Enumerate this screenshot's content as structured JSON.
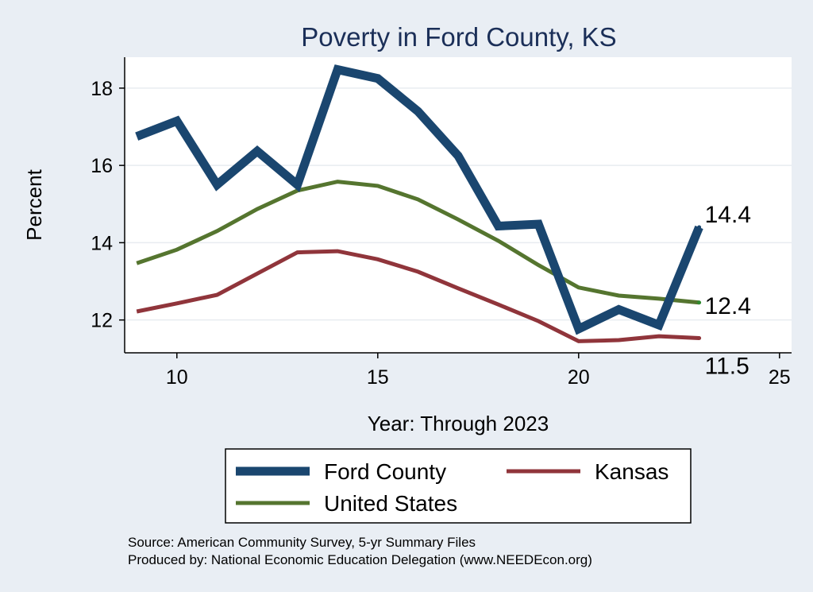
{
  "chart_data": {
    "type": "line",
    "title": "Poverty in Ford County, KS",
    "xlabel": "Year: Through 2023",
    "ylabel": "Percent",
    "xlim": [
      8.7,
      25.3
    ],
    "ylim": [
      11.15,
      18.8
    ],
    "x_ticks": [
      10,
      15,
      20,
      25
    ],
    "y_ticks": [
      12,
      14,
      16,
      18
    ],
    "grid": "horizontal",
    "x": [
      9,
      10,
      11,
      12,
      13,
      14,
      15,
      16,
      17,
      18,
      19,
      20,
      21,
      22,
      23
    ],
    "series": [
      {
        "name": "Ford County",
        "color": "#1a466f",
        "values": [
          16.75,
          17.15,
          15.5,
          16.37,
          15.5,
          18.48,
          18.25,
          17.4,
          16.25,
          14.43,
          14.48,
          11.77,
          12.27,
          11.87,
          14.4
        ],
        "end_label": "14.4"
      },
      {
        "name": "Kansas",
        "color": "#90353b",
        "values": [
          12.22,
          12.43,
          12.65,
          13.2,
          13.75,
          13.78,
          13.57,
          13.25,
          12.82,
          12.4,
          11.97,
          11.45,
          11.48,
          11.58,
          11.53
        ],
        "end_label": "11.5"
      },
      {
        "name": "United States",
        "color": "#55752f",
        "values": [
          13.47,
          13.82,
          14.3,
          14.87,
          15.35,
          15.58,
          15.47,
          15.12,
          14.6,
          14.05,
          13.42,
          12.84,
          12.63,
          12.55,
          12.45
        ],
        "end_label": "12.4"
      }
    ],
    "legend": {
      "placement": "bottom",
      "entries": [
        "Ford County",
        "Kansas",
        "United States"
      ]
    },
    "notes": [
      "Source: American Community Survey, 5-yr Summary Files",
      "Produced by: National Economic Education Delegation (www.NEEDEcon.org)"
    ]
  }
}
